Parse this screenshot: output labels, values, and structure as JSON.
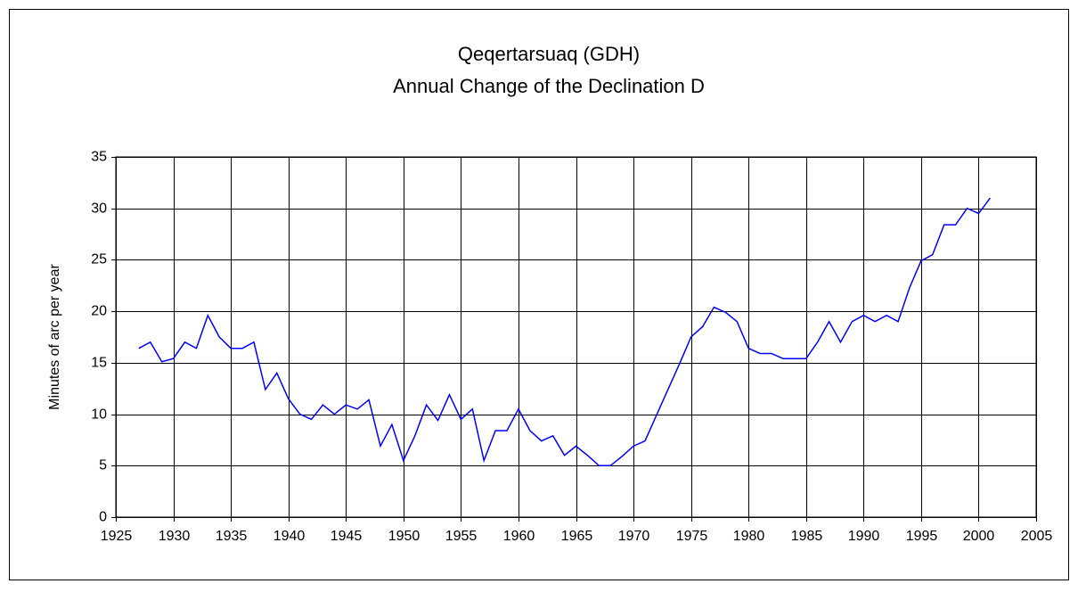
{
  "chart_data": {
    "type": "line",
    "title": [
      "Qeqertarsuaq (GDH)",
      "Annual Change of the Declination D"
    ],
    "y_label": "Minutes of arc per year",
    "x": [
      1927,
      1928,
      1929,
      1930,
      1931,
      1932,
      1933,
      1934,
      1935,
      1936,
      1937,
      1938,
      1939,
      1940,
      1941,
      1942,
      1943,
      1944,
      1945,
      1946,
      1947,
      1948,
      1949,
      1950,
      1951,
      1952,
      1953,
      1954,
      1955,
      1956,
      1957,
      1958,
      1959,
      1960,
      1961,
      1962,
      1963,
      1964,
      1965,
      1966,
      1967,
      1968,
      1969,
      1970,
      1971,
      1972,
      1973,
      1974,
      1975,
      1976,
      1977,
      1978,
      1979,
      1980,
      1981,
      1982,
      1983,
      1984,
      1985,
      1986,
      1987,
      1988,
      1989,
      1990,
      1991,
      1992,
      1993,
      1994,
      1995,
      1996,
      1997,
      1998,
      1999,
      2000,
      2001
    ],
    "series": [
      {
        "color": "#0000ff",
        "values": [
          16.4,
          17,
          15.1,
          15.4,
          17,
          16.4,
          19.6,
          17.5,
          16.4,
          16.4,
          17,
          12.4,
          14,
          11.5,
          10,
          9.5,
          10.9,
          10,
          10.9,
          10.5,
          11.4,
          6.9,
          9,
          5.5,
          7.9,
          10.9,
          9.4,
          11.9,
          9.5,
          10.5,
          5.5,
          8.4,
          8.4,
          10.5,
          8.4,
          7.4,
          7.9,
          6,
          6.9,
          6,
          5,
          5,
          5.9,
          6.9,
          7.4,
          9.9,
          12.4,
          14.9,
          17.5,
          18.5,
          20.4,
          19.9,
          19,
          16.4,
          15.9,
          15.9,
          15.4,
          15.4,
          15.4,
          17,
          19,
          17,
          19,
          19.6,
          19,
          19.6,
          19,
          22.3,
          24.9,
          25.5,
          28.4,
          28.4,
          30,
          29.5,
          31
        ]
      }
    ],
    "xlim": [
      1925,
      2005
    ],
    "xticks": [
      1925,
      1930,
      1935,
      1940,
      1945,
      1950,
      1955,
      1960,
      1965,
      1970,
      1975,
      1980,
      1985,
      1990,
      1995,
      2000,
      2005
    ],
    "ylim": [
      0,
      35
    ],
    "yticks": [
      0,
      5,
      10,
      15,
      20,
      25,
      30,
      35
    ],
    "grid": true
  }
}
